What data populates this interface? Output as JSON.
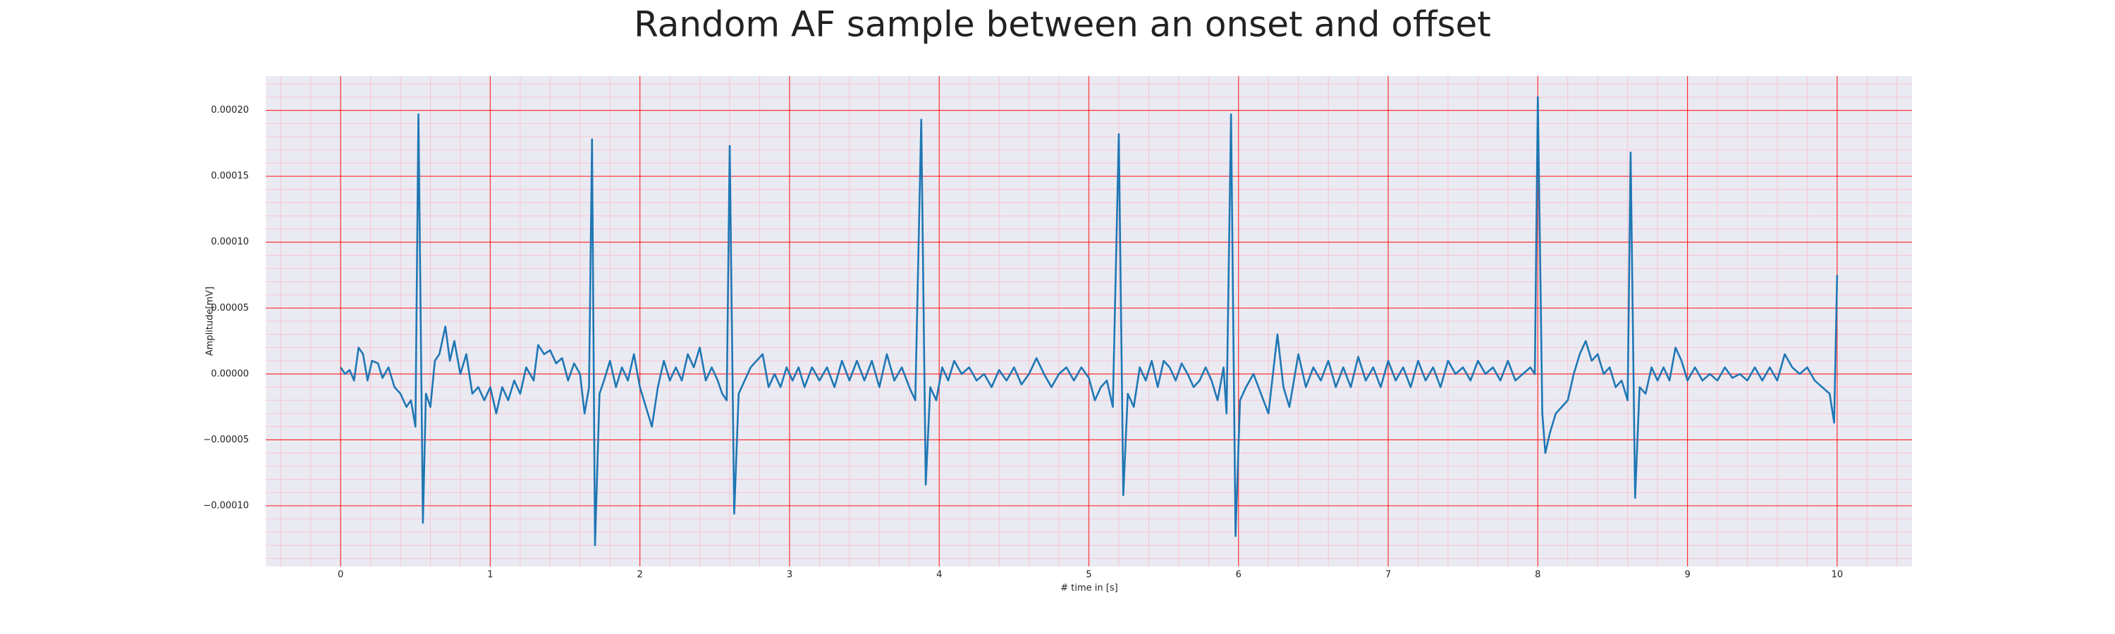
{
  "chart_data": {
    "type": "line",
    "title": "Random AF sample between an onset and offset",
    "x_label": "# time in [s]",
    "y_label": "Amplitude[mV]",
    "color": "#1f77b4",
    "grid": true,
    "minor_grid": true,
    "xlim": [
      -0.5,
      10.5
    ],
    "ylim": [
      -0.000146,
      0.000226
    ],
    "xticks": [
      0,
      1,
      2,
      3,
      4,
      5,
      6,
      7,
      8,
      9,
      10
    ],
    "yticks": [
      {
        "value": -0.0001,
        "label": "−0.00010"
      },
      {
        "value": -5e-05,
        "label": "−0.00005"
      },
      {
        "value": 0,
        "label": "0.00000"
      },
      {
        "value": 5e-05,
        "label": "0.00005"
      },
      {
        "value": 0.0001,
        "label": "0.00010"
      },
      {
        "value": 0.00015,
        "label": "0.00015"
      },
      {
        "value": 0.0002,
        "label": "0.00020"
      }
    ],
    "x": [
      0,
      0.03,
      0.06,
      0.09,
      0.12,
      0.15,
      0.18,
      0.21,
      0.25,
      0.28,
      0.32,
      0.36,
      0.4,
      0.44,
      0.47,
      0.5,
      0.52,
      0.55,
      0.57,
      0.6,
      0.63,
      0.66,
      0.7,
      0.73,
      0.76,
      0.8,
      0.84,
      0.88,
      0.92,
      0.96,
      1.0,
      1.04,
      1.08,
      1.12,
      1.16,
      1.2,
      1.24,
      1.29,
      1.32,
      1.36,
      1.4,
      1.44,
      1.48,
      1.52,
      1.56,
      1.6,
      1.63,
      1.66,
      1.68,
      1.7,
      1.73,
      1.76,
      1.8,
      1.84,
      1.88,
      1.92,
      1.96,
      2.0,
      2.04,
      2.08,
      2.12,
      2.16,
      2.2,
      2.24,
      2.28,
      2.32,
      2.36,
      2.4,
      2.44,
      2.48,
      2.52,
      2.55,
      2.58,
      2.6,
      2.63,
      2.66,
      2.7,
      2.74,
      2.78,
      2.82,
      2.86,
      2.9,
      2.94,
      2.98,
      3.02,
      3.06,
      3.1,
      3.15,
      3.2,
      3.25,
      3.3,
      3.35,
      3.4,
      3.45,
      3.5,
      3.55,
      3.6,
      3.65,
      3.7,
      3.75,
      3.8,
      3.84,
      3.88,
      3.91,
      3.94,
      3.98,
      4.02,
      4.06,
      4.1,
      4.15,
      4.2,
      4.25,
      4.3,
      4.35,
      4.4,
      4.45,
      4.5,
      4.55,
      4.6,
      4.65,
      4.7,
      4.75,
      4.8,
      4.85,
      4.9,
      4.95,
      5.0,
      5.04,
      5.08,
      5.12,
      5.16,
      5.2,
      5.23,
      5.26,
      5.3,
      5.34,
      5.38,
      5.42,
      5.46,
      5.5,
      5.54,
      5.58,
      5.62,
      5.66,
      5.7,
      5.74,
      5.78,
      5.82,
      5.86,
      5.9,
      5.92,
      5.95,
      5.98,
      6.01,
      6.05,
      6.1,
      6.15,
      6.2,
      6.26,
      6.3,
      6.34,
      6.4,
      6.45,
      6.5,
      6.55,
      6.6,
      6.65,
      6.7,
      6.75,
      6.8,
      6.85,
      6.9,
      6.95,
      7.0,
      7.05,
      7.1,
      7.15,
      7.2,
      7.25,
      7.3,
      7.35,
      7.4,
      7.45,
      7.5,
      7.55,
      7.6,
      7.65,
      7.7,
      7.75,
      7.8,
      7.85,
      7.9,
      7.95,
      7.98,
      8.0,
      8.03,
      8.05,
      8.08,
      8.12,
      8.16,
      8.2,
      8.24,
      8.28,
      8.32,
      8.36,
      8.4,
      8.44,
      8.48,
      8.52,
      8.56,
      8.6,
      8.62,
      8.65,
      8.68,
      8.72,
      8.76,
      8.8,
      8.84,
      8.88,
      8.92,
      8.96,
      9.0,
      9.05,
      9.1,
      9.15,
      9.2,
      9.25,
      9.3,
      9.35,
      9.4,
      9.45,
      9.5,
      9.55,
      9.6,
      9.65,
      9.7,
      9.75,
      9.8,
      9.85,
      9.9,
      9.95,
      9.98,
      10.0
    ],
    "values": [
      5e-06,
      0,
      3e-06,
      -5e-06,
      2e-05,
      1.5e-05,
      -5e-06,
      1e-05,
      8e-06,
      -3e-06,
      5e-06,
      -1e-05,
      -1.5e-05,
      -2.5e-05,
      -2e-05,
      -4e-05,
      0.000197,
      -0.000113,
      -1.5e-05,
      -2.5e-05,
      1e-05,
      1.5e-05,
      3.6e-05,
      1e-05,
      2.5e-05,
      0,
      1.5e-05,
      -1.5e-05,
      -1e-05,
      -2e-05,
      -1e-05,
      -3e-05,
      -1e-05,
      -2e-05,
      -5e-06,
      -1.5e-05,
      5e-06,
      -5e-06,
      2.2e-05,
      1.5e-05,
      1.8e-05,
      8e-06,
      1.2e-05,
      -5e-06,
      8e-06,
      0,
      -3e-05,
      -1e-05,
      0.000178,
      -0.00013,
      -1.5e-05,
      -5e-06,
      1e-05,
      -1e-05,
      5e-06,
      -5e-06,
      1.5e-05,
      -1e-05,
      -2.5e-05,
      -4e-05,
      -1e-05,
      1e-05,
      -5e-06,
      5e-06,
      -5e-06,
      1.5e-05,
      5e-06,
      2e-05,
      -5e-06,
      5e-06,
      -5e-06,
      -1.5e-05,
      -2e-05,
      0.000173,
      -0.000106,
      -1.5e-05,
      -5e-06,
      5e-06,
      1e-05,
      1.5e-05,
      -1e-05,
      0,
      -1e-05,
      5e-06,
      -5e-06,
      5e-06,
      -1e-05,
      5e-06,
      -5e-06,
      5e-06,
      -1e-05,
      1e-05,
      -5e-06,
      1e-05,
      -5e-06,
      1e-05,
      -1e-05,
      1.5e-05,
      -5e-06,
      5e-06,
      -1e-05,
      -2e-05,
      0.000193,
      -8.4e-05,
      -1e-05,
      -2e-05,
      5e-06,
      -5e-06,
      1e-05,
      0,
      5e-06,
      -5e-06,
      0,
      -1e-05,
      3e-06,
      -5e-06,
      5e-06,
      -8e-06,
      0,
      1.2e-05,
      0,
      -1e-05,
      0,
      5e-06,
      -5e-06,
      5e-06,
      -3e-06,
      -2e-05,
      -1e-05,
      -5e-06,
      -2.5e-05,
      0.000182,
      -9.2e-05,
      -1.5e-05,
      -2.5e-05,
      5e-06,
      -5e-06,
      1e-05,
      -1e-05,
      1e-05,
      5e-06,
      -5e-06,
      8e-06,
      0,
      -1e-05,
      -5e-06,
      5e-06,
      -5e-06,
      -2e-05,
      5e-06,
      -3e-05,
      0.000197,
      -0.000123,
      -2e-05,
      -1e-05,
      0,
      -1.5e-05,
      -3e-05,
      3e-05,
      -1e-05,
      -2.5e-05,
      1.5e-05,
      -1e-05,
      5e-06,
      -5e-06,
      1e-05,
      -1e-05,
      5e-06,
      -1e-05,
      1.3e-05,
      -5e-06,
      5e-06,
      -1e-05,
      1e-05,
      -5e-06,
      5e-06,
      -1e-05,
      1e-05,
      -5e-06,
      5e-06,
      -1e-05,
      1e-05,
      0,
      5e-06,
      -5e-06,
      1e-05,
      0,
      5e-06,
      -5e-06,
      1e-05,
      -5e-06,
      0,
      5e-06,
      0,
      0.00021,
      -3e-05,
      -6e-05,
      -4.5e-05,
      -3e-05,
      -2.5e-05,
      -2e-05,
      0,
      1.5e-05,
      2.5e-05,
      1e-05,
      1.5e-05,
      0,
      5e-06,
      -1e-05,
      -5e-06,
      -2e-05,
      0.000168,
      -9.4e-05,
      -1e-05,
      -1.5e-05,
      5e-06,
      -5e-06,
      5e-06,
      -5e-06,
      2e-05,
      1e-05,
      -5e-06,
      5e-06,
      -5e-06,
      0,
      -5e-06,
      5e-06,
      -3e-06,
      0,
      -5e-06,
      5e-06,
      -5e-06,
      5e-06,
      -5e-06,
      1.5e-05,
      5e-06,
      0,
      5e-06,
      -5e-06,
      -1e-05,
      -1.5e-05,
      -3.7e-05,
      7.5e-05
    ]
  }
}
